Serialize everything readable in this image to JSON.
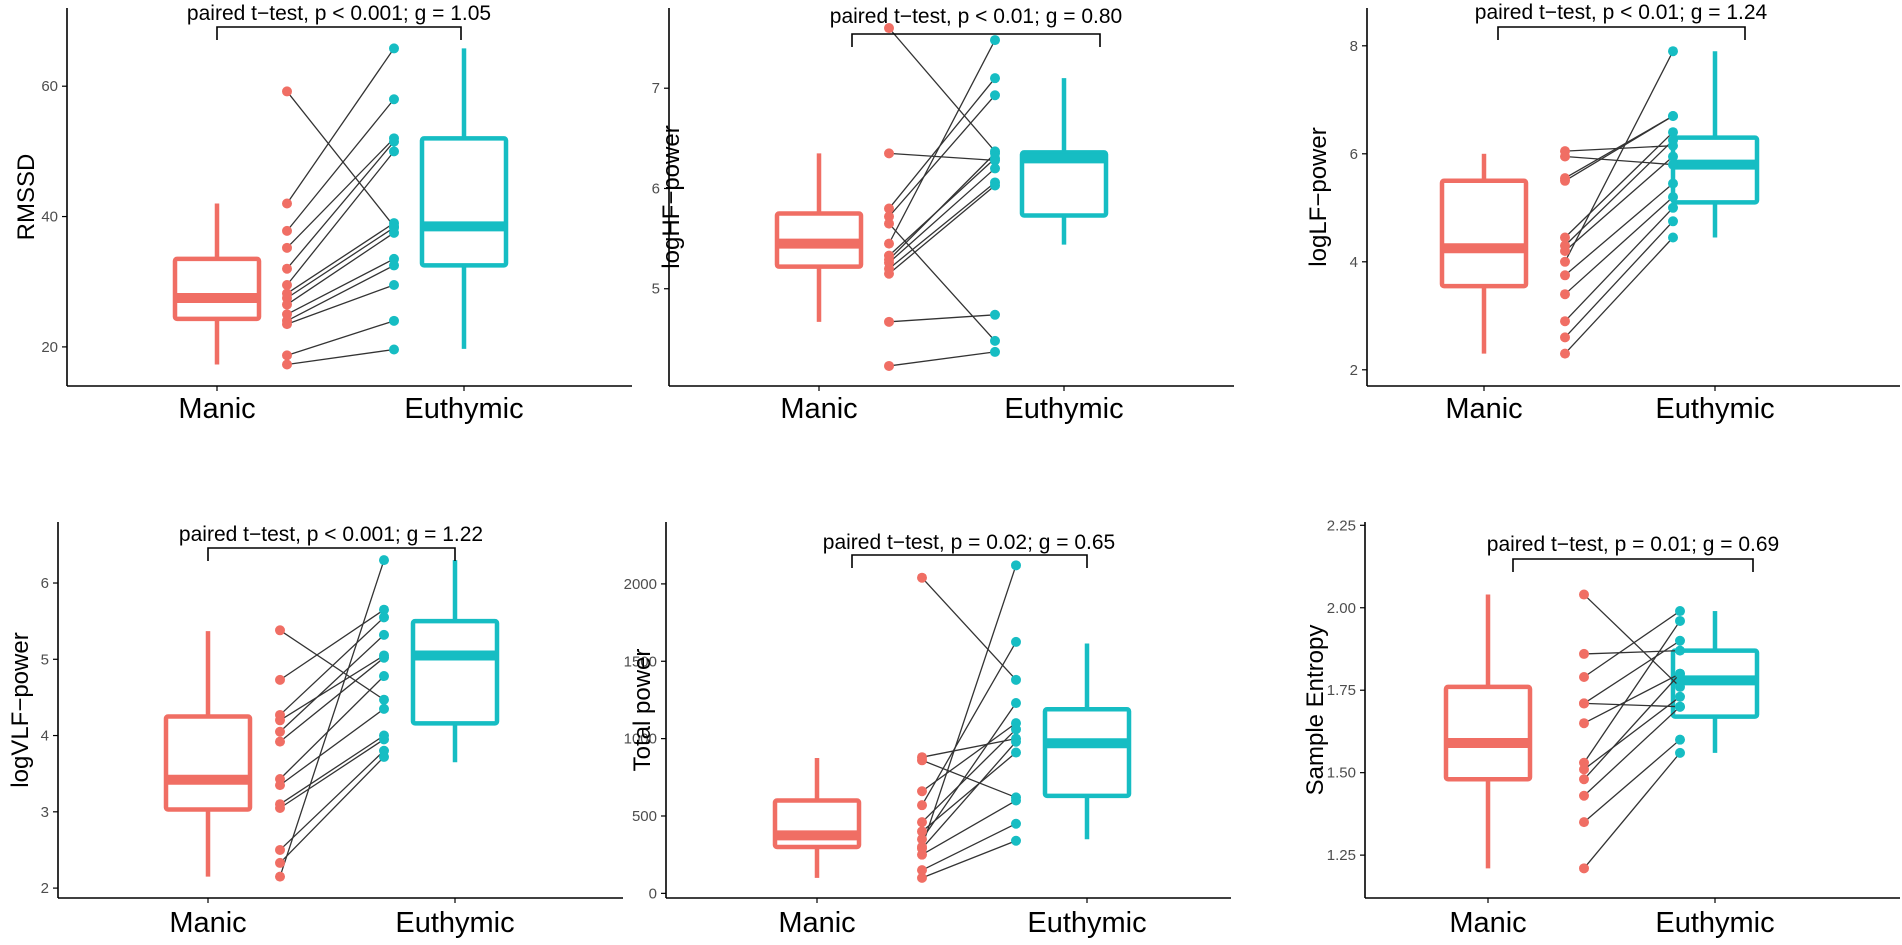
{
  "colors": {
    "manic": "#F06E64",
    "euthymic": "#16BDC3",
    "line": "#333333",
    "axis": "#000000",
    "tick_text": "#4d4d4d"
  },
  "chart_data": [
    {
      "type": "box_paired",
      "ylabel": "RMSSD",
      "categories": [
        "Manic",
        "Euthymic"
      ],
      "ylim": [
        14,
        72
      ],
      "yticks": [
        20,
        40,
        60
      ],
      "yticklabels": [
        "20",
        "40",
        "60"
      ],
      "annotation": "paired t−test, p < 0.001; g = 1.05",
      "box": {
        "manic": {
          "lower": 17.3,
          "q1": 24.3,
          "median": 27.5,
          "q3": 33.5,
          "upper": 42.0
        },
        "euthymic": {
          "lower": 19.7,
          "q1": 32.5,
          "median": 38.5,
          "q3": 52.0,
          "upper": 65.8
        }
      },
      "pairs": [
        [
          59.2,
          38.5
        ],
        [
          42.0,
          65.8
        ],
        [
          37.8,
          58.0
        ],
        [
          35.2,
          52.0
        ],
        [
          32.0,
          51.5
        ],
        [
          29.5,
          50.0
        ],
        [
          28.2,
          39.0
        ],
        [
          27.5,
          38.3
        ],
        [
          26.5,
          37.5
        ],
        [
          25.0,
          33.5
        ],
        [
          24.0,
          32.5
        ],
        [
          23.5,
          29.5
        ],
        [
          18.7,
          24.0
        ],
        [
          17.3,
          19.6
        ]
      ]
    },
    {
      "type": "box_paired",
      "ylabel": "logHF−power",
      "categories": [
        "Manic",
        "Euthymic"
      ],
      "ylim": [
        4.03,
        7.8
      ],
      "yticks": [
        5,
        6,
        7
      ],
      "yticklabels": [
        "5",
        "6",
        "7"
      ],
      "annotation": "paired t−test, p < 0.01; g = 0.80",
      "box": {
        "manic": {
          "lower": 4.67,
          "q1": 5.22,
          "median": 5.45,
          "q3": 5.75,
          "upper": 6.35
        },
        "euthymic": {
          "lower": 5.44,
          "q1": 5.73,
          "median": 6.3,
          "q3": 6.36,
          "upper": 7.1
        }
      },
      "pairs": [
        [
          7.6,
          6.37
        ],
        [
          6.35,
          6.28
        ],
        [
          5.8,
          7.1
        ],
        [
          5.72,
          6.93
        ],
        [
          5.65,
          4.48
        ],
        [
          5.45,
          7.48
        ],
        [
          5.33,
          6.3
        ],
        [
          5.29,
          6.35
        ],
        [
          5.26,
          6.2
        ],
        [
          5.2,
          6.06
        ],
        [
          5.15,
          6.03
        ],
        [
          4.67,
          4.74
        ],
        [
          4.23,
          4.37
        ]
      ]
    },
    {
      "type": "box_paired",
      "ylabel": "logLF−power",
      "categories": [
        "Manic",
        "Euthymic"
      ],
      "ylim": [
        1.7,
        8.7
      ],
      "yticks": [
        2,
        4,
        6,
        8
      ],
      "yticklabels": [
        "2",
        "4",
        "6",
        "8"
      ],
      "annotation": "paired t−test, p < 0.01; g = 1.24",
      "box": {
        "manic": {
          "lower": 2.3,
          "q1": 3.55,
          "median": 4.25,
          "q3": 5.5,
          "upper": 6.0
        },
        "euthymic": {
          "lower": 4.45,
          "q1": 5.1,
          "median": 5.8,
          "q3": 6.3,
          "upper": 7.9
        }
      },
      "pairs": [
        [
          6.05,
          6.15
        ],
        [
          5.95,
          5.8
        ],
        [
          5.55,
          6.7
        ],
        [
          5.5,
          6.7
        ],
        [
          4.45,
          6.4
        ],
        [
          4.3,
          6.25
        ],
        [
          4.2,
          5.95
        ],
        [
          4.0,
          7.9
        ],
        [
          3.75,
          5.45
        ],
        [
          3.4,
          5.2
        ],
        [
          2.9,
          5.0
        ],
        [
          2.6,
          4.75
        ],
        [
          2.3,
          4.45
        ]
      ]
    },
    {
      "type": "box_paired",
      "ylabel": "logVLF−power",
      "categories": [
        "Manic",
        "Euthymic"
      ],
      "ylim": [
        1.87,
        6.8
      ],
      "yticks": [
        2,
        3,
        4,
        5,
        6
      ],
      "yticklabels": [
        "2",
        "3",
        "4",
        "5",
        "6"
      ],
      "annotation": "paired t−test, p < 0.001; g = 1.22",
      "box": {
        "manic": {
          "lower": 2.15,
          "q1": 3.03,
          "median": 3.42,
          "q3": 4.25,
          "upper": 5.37
        },
        "euthymic": {
          "lower": 3.65,
          "q1": 4.16,
          "median": 5.05,
          "q3": 5.5,
          "upper": 6.3
        }
      },
      "pairs": [
        [
          5.38,
          4.47
        ],
        [
          4.73,
          5.65
        ],
        [
          4.27,
          5.55
        ],
        [
          4.2,
          5.05
        ],
        [
          4.05,
          5.32
        ],
        [
          3.92,
          5.02
        ],
        [
          3.43,
          4.78
        ],
        [
          3.35,
          4.35
        ],
        [
          3.1,
          4.0
        ],
        [
          3.05,
          3.95
        ],
        [
          2.5,
          3.8
        ],
        [
          2.33,
          3.72
        ],
        [
          2.15,
          6.3
        ]
      ]
    },
    {
      "type": "box_paired",
      "ylabel": "Total power",
      "categories": [
        "Manic",
        "Euthymic"
      ],
      "ylim": [
        -30,
        2400
      ],
      "yticks": [
        0,
        500,
        1000,
        1500,
        2000
      ],
      "yticklabels": [
        "0",
        "500",
        "1000",
        "1500",
        "2000"
      ],
      "annotation": "paired t−test, p = 0.02; g = 0.65",
      "box": {
        "manic": {
          "lower": 100,
          "q1": 300,
          "median": 375,
          "q3": 600,
          "upper": 875
        },
        "euthymic": {
          "lower": 350,
          "q1": 630,
          "median": 970,
          "q3": 1190,
          "upper": 1615
        }
      },
      "pairs": [
        [
          2040,
          1380
        ],
        [
          880,
          1000
        ],
        [
          860,
          620
        ],
        [
          660,
          1100
        ],
        [
          570,
          1625
        ],
        [
          460,
          1060
        ],
        [
          400,
          910
        ],
        [
          350,
          1230
        ],
        [
          300,
          2120
        ],
        [
          290,
          980
        ],
        [
          250,
          600
        ],
        [
          150,
          450
        ],
        [
          100,
          340
        ]
      ]
    },
    {
      "type": "box_paired",
      "ylabel": "Sample Entropy",
      "categories": [
        "Manic",
        "Euthymic"
      ],
      "ylim": [
        1.12,
        2.26
      ],
      "yticks": [
        1.25,
        1.5,
        1.75,
        2.0,
        2.25
      ],
      "yticklabels": [
        "1.25",
        "1.50",
        "1.75",
        "2.00",
        "2.25"
      ],
      "annotation": "paired t−test, p = 0.01; g = 0.69",
      "box": {
        "manic": {
          "lower": 1.21,
          "q1": 1.48,
          "median": 1.59,
          "q3": 1.76,
          "upper": 2.04
        },
        "euthymic": {
          "lower": 1.56,
          "q1": 1.67,
          "median": 1.78,
          "q3": 1.87,
          "upper": 1.99
        }
      },
      "pairs": [
        [
          2.04,
          1.76
        ],
        [
          1.86,
          1.87
        ],
        [
          1.79,
          1.99
        ],
        [
          1.71,
          1.9
        ],
        [
          1.71,
          1.7
        ],
        [
          1.65,
          1.8
        ],
        [
          1.53,
          1.96
        ],
        [
          1.51,
          1.73
        ],
        [
          1.48,
          1.8
        ],
        [
          1.43,
          1.7
        ],
        [
          1.35,
          1.6
        ],
        [
          1.21,
          1.56
        ]
      ]
    }
  ]
}
